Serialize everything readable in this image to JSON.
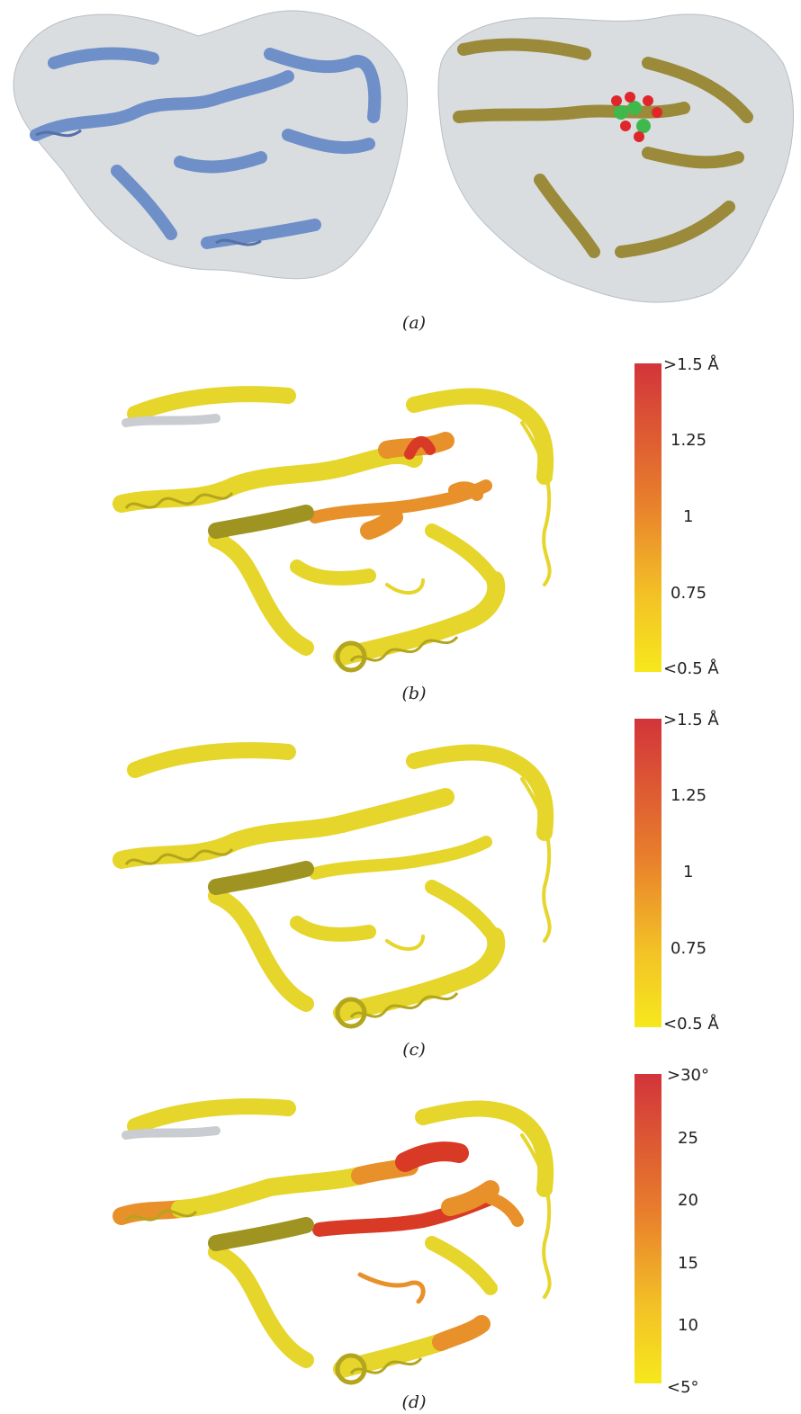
{
  "panels": [
    {
      "caption": "(a)",
      "left_color": "#6f8fc9",
      "right_color": "#9a8a3a",
      "surface_color": "#c9ced3",
      "ligand_colors": [
        "#e0262b",
        "#3fb94b"
      ]
    },
    {
      "caption": "(b)",
      "scale_top": "#d2343a",
      "scale_bottom": "#f6e81c",
      "ticks": [
        ">1.5 Å",
        "1.25",
        "1",
        "0.75",
        "<0.5 Å"
      ]
    },
    {
      "caption": "(c)",
      "scale_top": "#d2343a",
      "scale_bottom": "#f6e81c",
      "ticks": [
        ">1.5 Å",
        "1.25",
        "1",
        "0.75",
        "<0.5 Å"
      ]
    },
    {
      "caption": "(d)",
      "scale_top": "#d2343a",
      "scale_bottom": "#f6e81c",
      "ticks": [
        ">30°",
        "25",
        "20",
        "15",
        "10",
        "<5°"
      ]
    }
  ],
  "protein_colors": {
    "yellow": "#e6d52a",
    "yellow_dark": "#9f9322",
    "orange": "#e8902a",
    "red": "#d93a26",
    "grey": "#c9ccd0"
  }
}
